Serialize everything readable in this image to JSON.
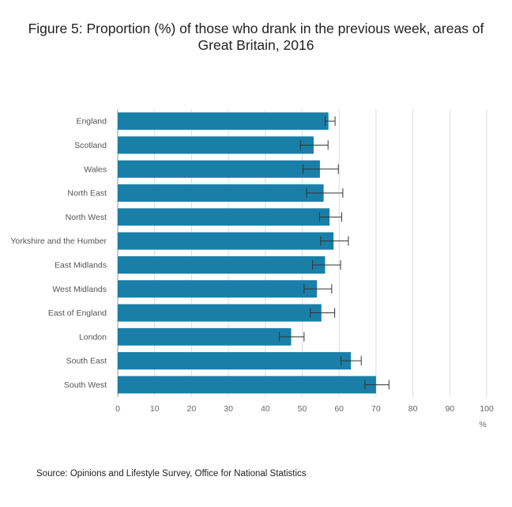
{
  "title_lines": [
    "Figure 5: Proportion (%) of those who drank in the previous week, areas of",
    "Great Britain, 2016"
  ],
  "source": "Source: Opinions and Lifestyle Survey, Office for National Statistics",
  "colors": {
    "bar": "#1a7fa8",
    "errorbar": "#333333",
    "grid": "#dddddd",
    "axis": "#999999"
  },
  "chart_data": {
    "type": "bar",
    "orientation": "horizontal",
    "title": "Figure 5: Proportion (%) of those who drank in the previous week, areas of Great Britain, 2016",
    "xlabel": "%",
    "ylabel": "",
    "xlim": [
      0,
      100
    ],
    "xticks": [
      0,
      10,
      20,
      30,
      40,
      50,
      60,
      70,
      80,
      90,
      100
    ],
    "grid": true,
    "categories": [
      "England",
      "Scotland",
      "Wales",
      "North East",
      "North West",
      "Yorkshire and the Humber",
      "East Midlands",
      "West Midlands",
      "East of England",
      "London",
      "South East",
      "South West"
    ],
    "values": [
      57.1,
      53.1,
      54.8,
      55.8,
      57.4,
      58.5,
      56.2,
      54.0,
      55.2,
      47.0,
      63.2,
      70.0
    ],
    "error_low": [
      56.2,
      49.5,
      50.2,
      51.2,
      54.7,
      55.0,
      52.8,
      50.5,
      52.2,
      43.8,
      60.5,
      67.0
    ],
    "error_high": [
      58.9,
      57.0,
      59.8,
      61.0,
      60.7,
      62.5,
      60.4,
      58.0,
      58.8,
      50.5,
      66.0,
      73.5
    ]
  }
}
